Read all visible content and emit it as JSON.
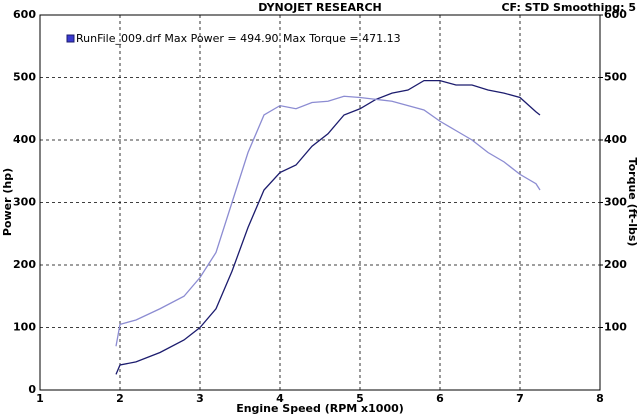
{
  "chart_data": {
    "type": "line",
    "title": "DYNOJET RESEARCH",
    "subtitle": "CF: STD  Smoothing: 5",
    "legend_texts": [
      "RunFile_009.drf Max Power = 494.90",
      "Max Torque = 471.13"
    ],
    "xlabel": "Engine Speed (RPM x1000)",
    "ylabel": "Power (hp)",
    "y2label": "Torque (ft-lbs)",
    "x": [
      1.95,
      2,
      2.2,
      2.5,
      2.8,
      3,
      3.2,
      3.4,
      3.6,
      3.8,
      4,
      4.2,
      4.4,
      4.6,
      4.8,
      5,
      5.2,
      5.4,
      5.6,
      5.8,
      6,
      6.2,
      6.4,
      6.6,
      6.8,
      7,
      7.2,
      7.25
    ],
    "series": [
      {
        "color": "#1c1c6e",
        "values": [
          25,
          40,
          45,
          60,
          80,
          100,
          130,
          190,
          260,
          320,
          348,
          360,
          390,
          410,
          440,
          450,
          465,
          475,
          480,
          495,
          495,
          488,
          488,
          480,
          475,
          468,
          445,
          440
        ]
      },
      {
        "color": "#8c8cd2",
        "axis": "y2",
        "values": [
          70,
          105,
          112,
          130,
          150,
          180,
          220,
          300,
          380,
          440,
          455,
          450,
          460,
          462,
          470,
          468,
          465,
          462,
          455,
          448,
          430,
          415,
          400,
          380,
          365,
          345,
          330,
          320
        ]
      }
    ],
    "xlim": [
      1,
      8
    ],
    "xticks": [
      1,
      2,
      3,
      4,
      5,
      6,
      7,
      8
    ],
    "ylim": [
      0,
      600
    ],
    "yticks": [
      0,
      100,
      200,
      300,
      400,
      500,
      600
    ],
    "y2lim": [
      0,
      600
    ],
    "y2ticks": [
      100,
      200,
      300,
      400,
      500,
      600
    ],
    "grid": true
  }
}
